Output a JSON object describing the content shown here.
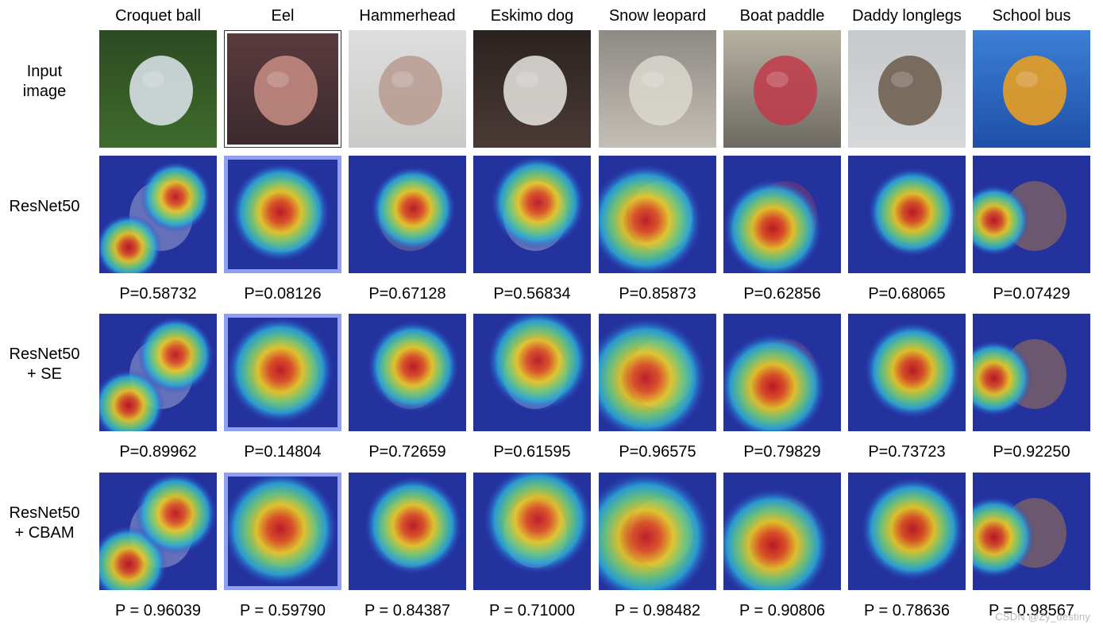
{
  "figure": {
    "classes": [
      "Croquet ball",
      "Eel",
      "Hammerhead",
      "Eskimo dog",
      "Snow leopard",
      "Boat paddle",
      "Daddy longlegs",
      "School bus"
    ],
    "rows": [
      {
        "label_lines": [
          "Input",
          "image"
        ],
        "kind": "input"
      },
      {
        "label_lines": [
          "ResNet50"
        ],
        "kind": "heatmap",
        "probabilities": [
          "P=0.58732",
          "P=0.08126",
          "P=0.67128",
          "P=0.56834",
          "P=0.85873",
          "P=0.62856",
          "P=0.68065",
          "P=0.07429"
        ]
      },
      {
        "label_lines": [
          "ResNet50",
          "+ SE"
        ],
        "kind": "heatmap",
        "probabilities": [
          "P=0.89962",
          "P=0.14804",
          "P=0.72659",
          "P=0.61595",
          "P=0.96575",
          "P=0.79829",
          "P=0.73723",
          "P=0.92250"
        ]
      },
      {
        "label_lines": [
          "ResNet50",
          "+ CBAM"
        ],
        "kind": "heatmap",
        "probabilities": [
          "P = 0.96039",
          "P = 0.59790",
          "P = 0.84387",
          "P = 0.71000",
          "P = 0.98482",
          "P = 0.90806",
          "P = 0.78636",
          "P = 0.98567"
        ]
      }
    ],
    "photo_palette": {
      "Croquet ball": {
        "base": "#3f6b2c",
        "top": "#2c4a22",
        "subject": "#dfe6ef"
      },
      "Eel": {
        "base": "#3a2a2e",
        "top": "#5c3b3f",
        "subject": "#c98e85"
      },
      "Hammerhead": {
        "base": "#c9c9c7",
        "top": "#dedede",
        "subject": "#b89b91"
      },
      "Eskimo dog": {
        "base": "#4b3b36",
        "top": "#2a2220",
        "subject": "#e9e6e3"
      },
      "Snow leopard": {
        "base": "#c4bfb6",
        "top": "#8e8a84",
        "subject": "#dcd8d0"
      },
      "Boat paddle": {
        "base": "#6d6a63",
        "top": "#b7b1a1",
        "subject": "#c13a4a"
      },
      "Daddy longlegs": {
        "base": "#d6d8d9",
        "top": "#c6c9cb",
        "subject": "#6a5a4a"
      },
      "School bus": {
        "base": "#1f4fa8",
        "top": "#3c7fd6",
        "subject": "#f2a11a"
      }
    },
    "watermark": "CSDN @Zy_destiny"
  }
}
